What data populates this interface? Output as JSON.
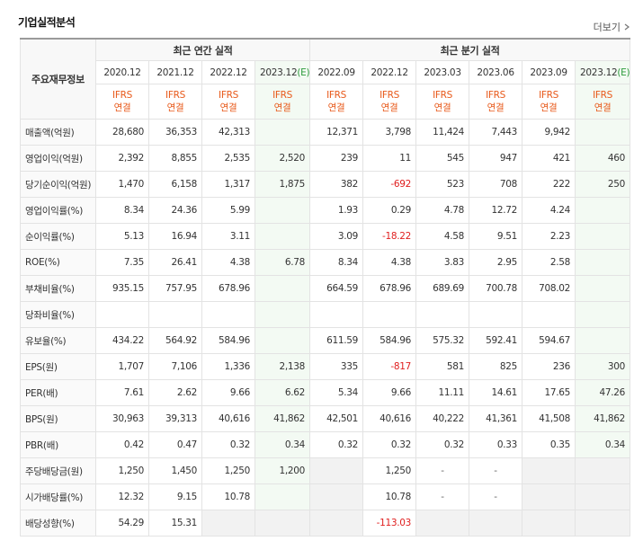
{
  "header": {
    "title": "기업실적분석",
    "more_link": "더보기"
  },
  "table": {
    "corner": "주요재무정보",
    "groups": [
      {
        "label": "최근 연간 실적",
        "span": 4
      },
      {
        "label": "최근 분기 실적",
        "span": 6
      }
    ],
    "columns": [
      {
        "period": "2020.12",
        "basis": "IFRS",
        "scope": "연결"
      },
      {
        "period": "2021.12",
        "basis": "IFRS",
        "scope": "연결"
      },
      {
        "period": "2022.12",
        "basis": "IFRS",
        "scope": "연결"
      },
      {
        "period": "2023.12(E)",
        "basis": "IFRS",
        "scope": "연결"
      },
      {
        "period": "2022.09",
        "basis": "IFRS",
        "scope": "연결"
      },
      {
        "period": "2022.12",
        "basis": "IFRS",
        "scope": "연결"
      },
      {
        "period": "2023.03",
        "basis": "IFRS",
        "scope": "연결"
      },
      {
        "period": "2023.06",
        "basis": "IFRS",
        "scope": "연결"
      },
      {
        "period": "2023.09",
        "basis": "IFRS",
        "scope": "연결"
      },
      {
        "period": "2023.12(E)",
        "basis": "IFRS",
        "scope": "연결"
      }
    ],
    "rows": [
      {
        "label": "매출액(억원)",
        "values": [
          "28,680",
          "36,353",
          "42,313",
          null,
          "12,371",
          "3,798",
          "11,424",
          "7,443",
          "9,942",
          null
        ]
      },
      {
        "label": "영업이익(억원)",
        "values": [
          "2,392",
          "8,855",
          "2,535",
          "2,520",
          "239",
          "11",
          "545",
          "947",
          "421",
          "460"
        ]
      },
      {
        "label": "당기순이익(억원)",
        "values": [
          "1,470",
          "6,158",
          "1,317",
          "1,875",
          "382",
          "-692",
          "523",
          "708",
          "222",
          "250"
        ]
      },
      {
        "label": "영업이익률(%)",
        "values": [
          "8.34",
          "24.36",
          "5.99",
          null,
          "1.93",
          "0.29",
          "4.78",
          "12.72",
          "4.24",
          null
        ]
      },
      {
        "label": "순이익률(%)",
        "values": [
          "5.13",
          "16.94",
          "3.11",
          null,
          "3.09",
          "-18.22",
          "4.58",
          "9.51",
          "2.23",
          null
        ]
      },
      {
        "label": "ROE(%)",
        "values": [
          "7.35",
          "26.41",
          "4.38",
          "6.78",
          "8.34",
          "4.38",
          "3.83",
          "2.95",
          "2.58",
          null
        ]
      },
      {
        "label": "부채비율(%)",
        "values": [
          "935.15",
          "757.95",
          "678.96",
          null,
          "664.59",
          "678.96",
          "689.69",
          "700.78",
          "708.02",
          null
        ]
      },
      {
        "label": "당좌비율(%)",
        "values": [
          null,
          null,
          null,
          null,
          null,
          null,
          null,
          null,
          null,
          null
        ]
      },
      {
        "label": "유보율(%)",
        "values": [
          "434.22",
          "564.92",
          "584.96",
          null,
          "611.59",
          "584.96",
          "575.32",
          "592.41",
          "594.67",
          null
        ]
      },
      {
        "label": "EPS(원)",
        "values": [
          "1,707",
          "7,106",
          "1,336",
          "2,138",
          "335",
          "-817",
          "581",
          "825",
          "236",
          "300"
        ]
      },
      {
        "label": "PER(배)",
        "values": [
          "7.61",
          "2.62",
          "9.66",
          "6.62",
          "5.34",
          "9.66",
          "11.11",
          "14.61",
          "17.65",
          "47.26"
        ]
      },
      {
        "label": "BPS(원)",
        "values": [
          "30,963",
          "39,313",
          "40,616",
          "41,862",
          "42,501",
          "40,616",
          "40,222",
          "41,361",
          "41,508",
          "41,862"
        ]
      },
      {
        "label": "PBR(배)",
        "values": [
          "0.42",
          "0.47",
          "0.32",
          "0.34",
          "0.32",
          "0.32",
          "0.32",
          "0.33",
          "0.35",
          "0.34"
        ]
      },
      {
        "label": "주당배당금(원)",
        "values": [
          "1,250",
          "1,450",
          "1,250",
          "1,200",
          null,
          "1,250",
          "-",
          "-",
          null,
          null
        ]
      },
      {
        "label": "시가배당률(%)",
        "values": [
          "12.32",
          "9.15",
          "10.78",
          null,
          null,
          "10.78",
          "-",
          "-",
          null,
          null
        ]
      },
      {
        "label": "배당성향(%)",
        "values": [
          "54.29",
          "15.31",
          null,
          null,
          null,
          "-113.03",
          null,
          null,
          null,
          null
        ]
      }
    ]
  }
}
